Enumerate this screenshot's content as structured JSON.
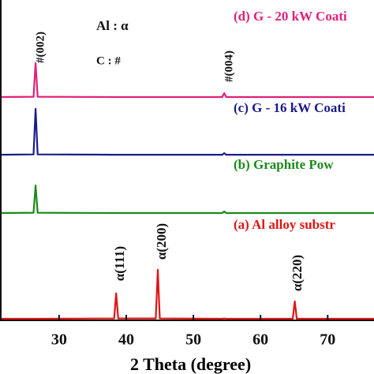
{
  "chart_data": {
    "type": "line",
    "x_label": "2 Theta (degree)",
    "x": [
      21.2,
      26.2,
      26.5,
      26.8,
      38.2,
      38.5,
      38.8,
      44.4,
      44.7,
      45.0,
      54.3,
      54.6,
      54.9,
      64.8,
      65.1,
      65.4,
      76.9
    ],
    "series": [
      {
        "name": "(a) Al alloy substr",
        "color": "#e01515",
        "values": [
          0.5,
          0.5,
          0.5,
          0.5,
          0.6,
          8.4,
          0.6,
          0.6,
          15.8,
          0.6,
          0.5,
          0.6,
          0.5,
          0.5,
          5.9,
          0.5,
          0.5
        ]
      },
      {
        "name": "(b) Graphite Pow",
        "color": "#1a8a1a",
        "values": [
          33.5,
          33.6,
          42.1,
          33.6,
          33.5,
          33.5,
          33.5,
          33.5,
          33.5,
          33.5,
          33.5,
          34.0,
          33.5,
          33.5,
          33.5,
          33.5,
          33.5
        ]
      },
      {
        "name": "(c) G - 16 kW Coati",
        "color": "#1a1a8c",
        "values": [
          51.7,
          51.8,
          66.0,
          51.8,
          51.7,
          51.7,
          51.7,
          51.7,
          51.7,
          51.7,
          51.7,
          52.2,
          51.7,
          51.7,
          51.7,
          51.7,
          51.7
        ]
      },
      {
        "name": "(d) G - 20 kW Coati",
        "color": "#e0207a",
        "values": [
          69.7,
          69.8,
          80.3,
          69.8,
          69.7,
          69.7,
          69.7,
          69.7,
          69.7,
          69.7,
          69.7,
          70.9,
          69.7,
          69.7,
          69.7,
          69.7,
          69.7
        ]
      }
    ],
    "peak_labels": [
      "#(002)",
      "#(004)",
      "α(111)",
      "α(200)",
      "α(220)"
    ],
    "phase_key": [
      "Al : α",
      "C : #"
    ],
    "xlim": [
      21.2,
      76.9
    ],
    "xticks": [
      30,
      40,
      50,
      60,
      70
    ],
    "ylim": [
      0,
      100
    ]
  }
}
